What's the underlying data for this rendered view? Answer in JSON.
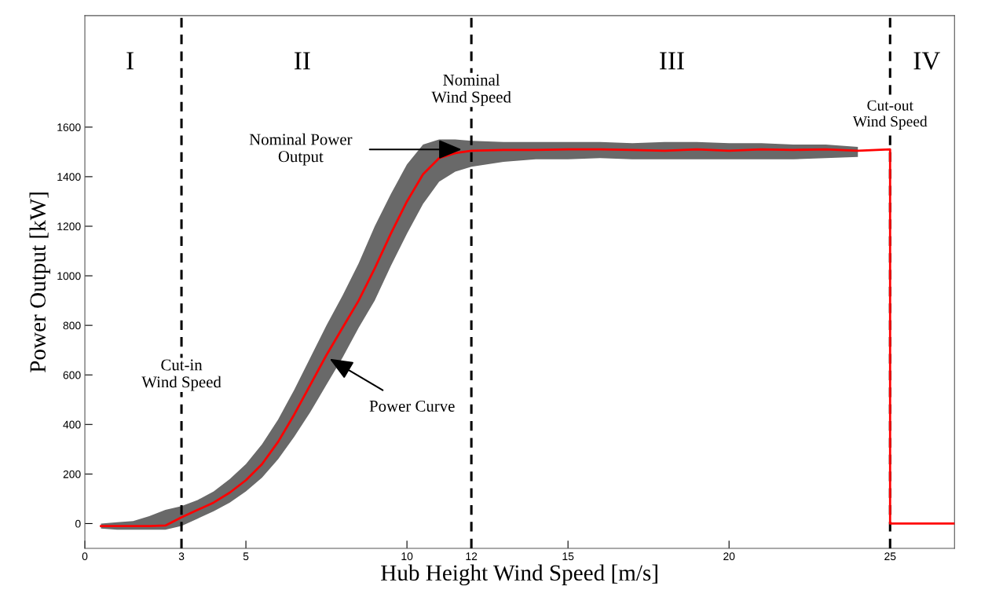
{
  "chart_data": {
    "type": "line",
    "xlabel": "Hub Height Wind Speed [m/s]",
    "ylabel": "Power Output [kW]",
    "xlim": [
      0,
      27
    ],
    "xticks": [
      0,
      3,
      5,
      10,
      12,
      15,
      20,
      25
    ],
    "ylim": [
      -100,
      2050
    ],
    "yticks": [
      0,
      200,
      400,
      600,
      800,
      1000,
      1200,
      1400,
      1600
    ],
    "grid": false,
    "marker": "none",
    "line_style": "solid",
    "series": [
      {
        "color": "#696969",
        "x": [
          0.5,
          1,
          1.5,
          2,
          2.5,
          3,
          3.5,
          4,
          4.5,
          5,
          5.5,
          6,
          6.5,
          7,
          7.5,
          8,
          8.5,
          9,
          9.5,
          10,
          10.5,
          11,
          11.5,
          12,
          13,
          14,
          15,
          16,
          17,
          18,
          19,
          20,
          21,
          22,
          23,
          24
        ],
        "values": [
          null,
          null,
          null,
          null,
          null,
          null,
          null,
          null,
          null,
          null,
          null,
          null,
          null,
          null,
          null,
          null,
          null,
          null,
          null,
          null,
          null,
          null,
          null,
          null,
          null,
          null,
          null,
          null,
          null,
          null,
          null,
          null,
          null,
          null,
          null,
          null
        ],
        "lower": [
          -20,
          -25,
          -25,
          -25,
          -25,
          -10,
          20,
          50,
          85,
          130,
          185,
          260,
          350,
          450,
          560,
          670,
          790,
          900,
          1040,
          1170,
          1290,
          1380,
          1420,
          1440,
          1460,
          1470,
          1470,
          1475,
          1470,
          1470,
          1470,
          1470,
          1470,
          1470,
          1475,
          1480
        ],
        "upper": [
          0,
          5,
          10,
          30,
          55,
          70,
          95,
          130,
          180,
          240,
          320,
          420,
          540,
          670,
          800,
          920,
          1050,
          1200,
          1330,
          1450,
          1530,
          1550,
          1550,
          1545,
          1540,
          1540,
          1540,
          1540,
          1535,
          1540,
          1540,
          1535,
          1535,
          1530,
          1530,
          1520
        ]
      },
      {
        "color": "#ff0000",
        "x": [
          0.5,
          1,
          1.5,
          2,
          2.5,
          3,
          3.5,
          4,
          4.5,
          5,
          5.5,
          6,
          6.5,
          7,
          7.5,
          8,
          8.5,
          9,
          9.5,
          10,
          10.5,
          11,
          11.5,
          12,
          13,
          14,
          15,
          16,
          17,
          18,
          19,
          20,
          21,
          22,
          23,
          24,
          25,
          25,
          27
        ],
        "values": [
          -10,
          -10,
          -10,
          -10,
          -8,
          25,
          55,
          85,
          125,
          175,
          240,
          330,
          440,
          560,
          680,
          790,
          900,
          1030,
          1170,
          1300,
          1410,
          1475,
          1495,
          1505,
          1508,
          1508,
          1510,
          1510,
          1508,
          1505,
          1510,
          1505,
          1510,
          1508,
          1510,
          1505,
          1510,
          0,
          0
        ]
      }
    ],
    "ref_lines": [
      {
        "axis": "x",
        "value": 3,
        "color": "#000000",
        "line_style": "dashed"
      },
      {
        "axis": "x",
        "value": 12,
        "color": "#000000",
        "line_style": "dashed"
      },
      {
        "axis": "x",
        "value": 25,
        "color": "#000000",
        "line_style": "dashed"
      }
    ],
    "annotations": [
      "I",
      "II",
      "III",
      "IV",
      {
        "text": "Cut-in\nWind Speed",
        "x": 3,
        "y": 600
      },
      {
        "text": "Nominal\nWind Speed",
        "x": 12,
        "y": 1750
      },
      {
        "text": "Cut-out\nWind Speed",
        "x": 25,
        "y": 1650
      },
      {
        "text": "Nominal Power\nOutput",
        "x": 11.7,
        "y": 1510
      },
      {
        "text": "Power Curve",
        "x": 7.6,
        "y": 665
      }
    ]
  }
}
